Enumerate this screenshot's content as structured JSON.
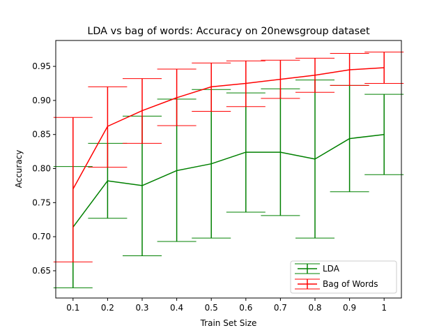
{
  "chart_data": {
    "type": "line",
    "title": "LDA vs bag of words: Accuracy on 20newsgroup dataset",
    "xlabel": "Train Set Size",
    "ylabel": "Accuracy",
    "x": [
      0.1,
      0.2,
      0.3,
      0.4,
      0.5,
      0.6,
      0.7,
      0.8,
      0.9,
      1.0
    ],
    "x_tick_labels": [
      "0.1",
      "0.2",
      "0.3",
      "0.4",
      "0.5",
      "0.6",
      "0.7",
      "0.8",
      "0.9",
      "1"
    ],
    "y_ticks": [
      0.65,
      0.7,
      0.75,
      0.8,
      0.85,
      0.9,
      0.95
    ],
    "y_tick_labels": [
      "0.65",
      "0.70",
      "0.75",
      "0.80",
      "0.85",
      "0.90",
      "0.95"
    ],
    "xlim": [
      0.05,
      1.05
    ],
    "ylim": [
      0.61,
      0.988
    ],
    "grid": false,
    "legend_position": "lower-right",
    "error_bars": true,
    "series": [
      {
        "name": "LDA",
        "color": "#008000",
        "values": [
          0.714,
          0.782,
          0.775,
          0.797,
          0.807,
          0.824,
          0.824,
          0.814,
          0.844,
          0.85
        ],
        "lower": [
          0.625,
          0.727,
          0.672,
          0.693,
          0.698,
          0.736,
          0.731,
          0.698,
          0.766,
          0.791
        ],
        "upper": [
          0.803,
          0.837,
          0.877,
          0.902,
          0.916,
          0.911,
          0.917,
          0.93,
          0.922,
          0.909
        ]
      },
      {
        "name": "Bag of Words",
        "color": "#ff0000",
        "values": [
          0.77,
          0.862,
          0.885,
          0.904,
          0.92,
          0.925,
          0.931,
          0.937,
          0.945,
          0.948
        ],
        "lower": [
          0.663,
          0.802,
          0.837,
          0.863,
          0.884,
          0.891,
          0.903,
          0.912,
          0.922,
          0.925
        ],
        "upper": [
          0.875,
          0.92,
          0.932,
          0.946,
          0.955,
          0.958,
          0.959,
          0.962,
          0.969,
          0.971
        ]
      }
    ]
  }
}
